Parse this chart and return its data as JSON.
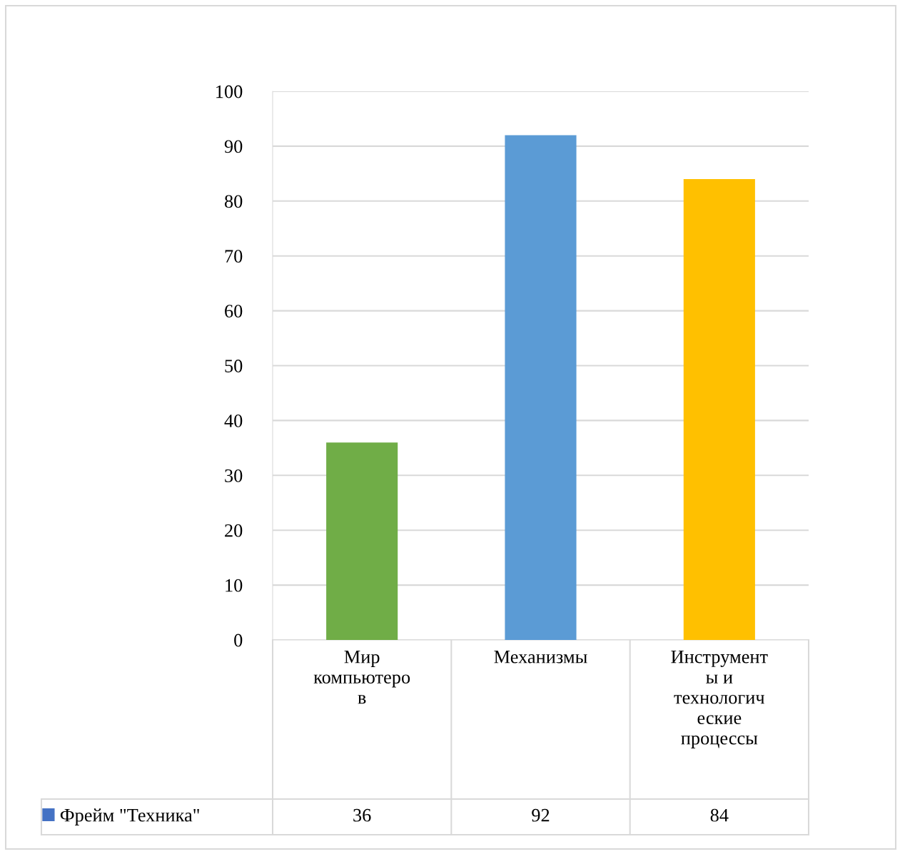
{
  "chart_data": {
    "type": "bar",
    "categories": [
      "Мир компьютеров",
      "Механизмы",
      "Инструменты и технологические процессы"
    ],
    "series": [
      {
        "name": "Фрейм \"Техника\"",
        "color": "#4472c4",
        "colors": [
          "#70ad47",
          "#5b9bd5",
          "#ffc000"
        ],
        "values": [
          36,
          92,
          84
        ]
      }
    ],
    "ylim": [
      0,
      100
    ],
    "yticks": [
      0,
      10,
      20,
      30,
      40,
      50,
      60,
      70,
      80,
      90,
      100
    ],
    "grid": "y",
    "legend": "bottom",
    "data_labels": true
  }
}
